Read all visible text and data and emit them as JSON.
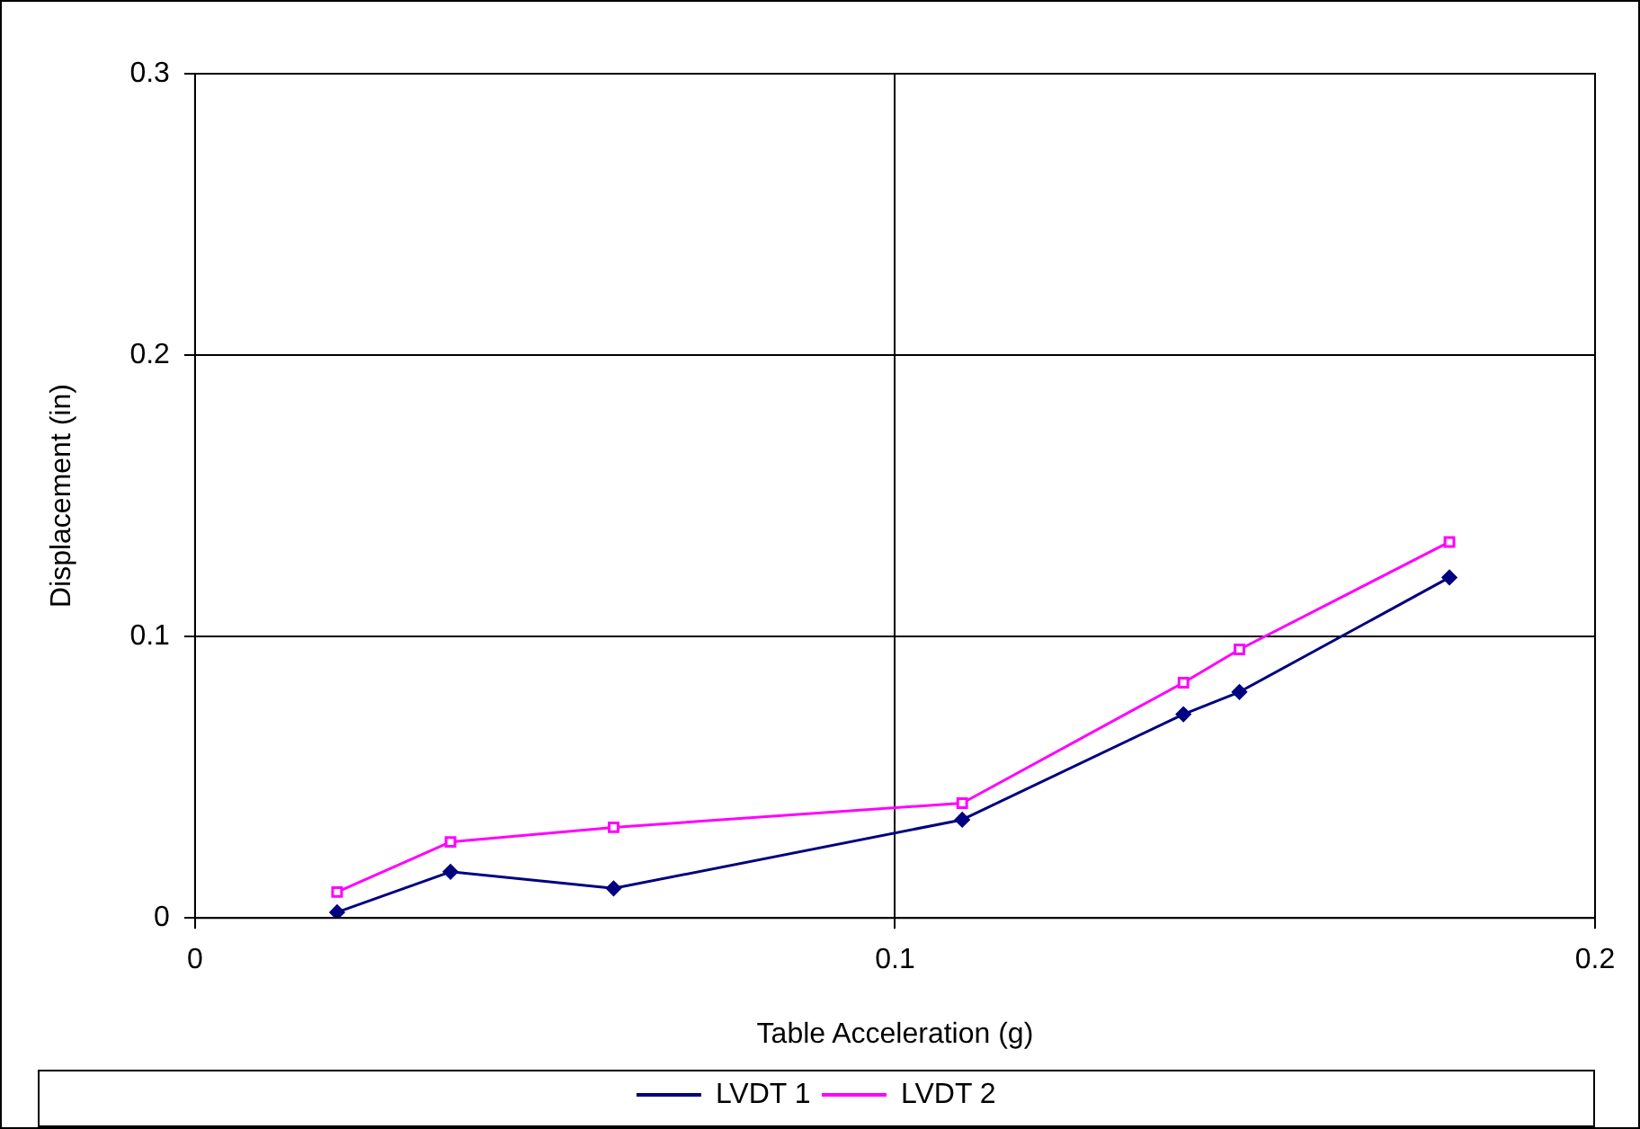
{
  "chart_data": {
    "type": "line",
    "xlabel": "Table Acceleration (g)",
    "ylabel": "Displacement (in)",
    "xlim": [
      0,
      0.2
    ],
    "xticks": [
      0,
      0.1,
      0.2
    ],
    "ylim": [
      0,
      0.3
    ],
    "yticks": [
      0,
      0.1,
      0.2,
      0.3
    ],
    "grid": true,
    "legend": "bottom",
    "series": [
      {
        "name": "LVDT 1",
        "color": "#000080",
        "marker": "diamond",
        "x": [
          0.0203,
          0.0365,
          0.0598,
          0.1096,
          0.1412,
          0.1492,
          0.1792
        ],
        "values": [
          0.002,
          0.0164,
          0.0105,
          0.0349,
          0.0724,
          0.0803,
          0.121
        ]
      },
      {
        "name": "LVDT 2",
        "color": "#ff00ff",
        "marker": "square",
        "x": [
          0.0203,
          0.0365,
          0.0598,
          0.1096,
          0.1412,
          0.1492,
          0.1792
        ],
        "values": [
          0.0092,
          0.027,
          0.0322,
          0.0408,
          0.0836,
          0.0954,
          0.1336
        ]
      }
    ]
  }
}
